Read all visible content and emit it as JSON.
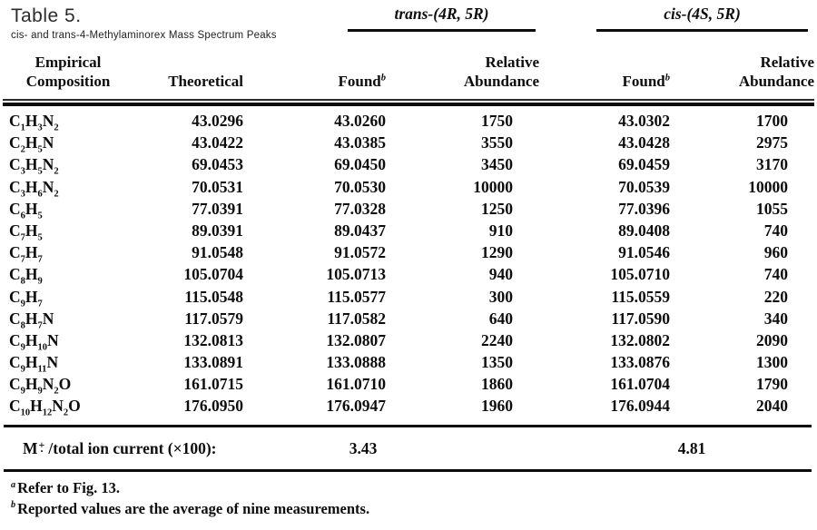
{
  "caption": {
    "title": "Table 5.",
    "subtitle": "cis- and trans-4-Methylaminorex Mass Spectrum Peaks"
  },
  "groups": {
    "trans": {
      "label": "trans-(4R, 5R)"
    },
    "cis": {
      "label": "cis-(4S, 5R)"
    }
  },
  "columns": {
    "empirical_line1": "Empirical",
    "empirical_line2": "Composition",
    "theoretical": "Theoretical",
    "found": "Found",
    "found_sup": "b",
    "relative_line1": "Relative",
    "relative_line2": "Abundance"
  },
  "table": {
    "rows": [
      {
        "formula": "C1H3N2",
        "theoretical": "43.0296",
        "trans_found": "43.0260",
        "trans_ra": "1750",
        "cis_found": "43.0302",
        "cis_ra": "1700"
      },
      {
        "formula": "C2H5N",
        "theoretical": "43.0422",
        "trans_found": "43.0385",
        "trans_ra": "3550",
        "cis_found": "43.0428",
        "cis_ra": "2975"
      },
      {
        "formula": "C3H5N2",
        "theoretical": "69.0453",
        "trans_found": "69.0450",
        "trans_ra": "3450",
        "cis_found": "69.0459",
        "cis_ra": "3170"
      },
      {
        "formula": "C3H6N2",
        "theoretical": "70.0531",
        "trans_found": "70.0530",
        "trans_ra": "10000",
        "cis_found": "70.0539",
        "cis_ra": "10000"
      },
      {
        "formula": "C6H5",
        "theoretical": "77.0391",
        "trans_found": "77.0328",
        "trans_ra": "1250",
        "cis_found": "77.0396",
        "cis_ra": "1055"
      },
      {
        "formula": "C7H5",
        "theoretical": "89.0391",
        "trans_found": "89.0437",
        "trans_ra": "910",
        "cis_found": "89.0408",
        "cis_ra": "740"
      },
      {
        "formula": "C7H7",
        "theoretical": "91.0548",
        "trans_found": "91.0572",
        "trans_ra": "1290",
        "cis_found": "91.0546",
        "cis_ra": "960"
      },
      {
        "formula": "C8H9",
        "theoretical": "105.0704",
        "trans_found": "105.0713",
        "trans_ra": "940",
        "cis_found": "105.0710",
        "cis_ra": "740"
      },
      {
        "formula": "C9H7",
        "theoretical": "115.0548",
        "trans_found": "115.0577",
        "trans_ra": "300",
        "cis_found": "115.0559",
        "cis_ra": "220"
      },
      {
        "formula": "C8H7N",
        "theoretical": "117.0579",
        "trans_found": "117.0582",
        "trans_ra": "640",
        "cis_found": "117.0590",
        "cis_ra": "340"
      },
      {
        "formula": "C9H10N",
        "theoretical": "132.0813",
        "trans_found": "132.0807",
        "trans_ra": "2240",
        "cis_found": "132.0802",
        "cis_ra": "2090"
      },
      {
        "formula": "C9H11N",
        "theoretical": "133.0891",
        "trans_found": "133.0888",
        "trans_ra": "1350",
        "cis_found": "133.0876",
        "cis_ra": "1300"
      },
      {
        "formula": "C9H9N2O",
        "theoretical": "161.0715",
        "trans_found": "161.0710",
        "trans_ra": "1860",
        "cis_found": "161.0704",
        "cis_ra": "1790"
      },
      {
        "formula": "C10H12N2O",
        "theoretical": "176.0950",
        "trans_found": "176.0947",
        "trans_ra": "1960",
        "cis_found": "176.0944",
        "cis_ra": "2040"
      }
    ]
  },
  "summary": {
    "label_m": "M",
    "label_sup": "+",
    "label_dot": "·",
    "label_rest": "/total ion current (×100):",
    "trans_value": "3.43",
    "cis_value": "4.81"
  },
  "footnotes": [
    {
      "marker": "a",
      "text": "Refer to Fig. 13."
    },
    {
      "marker": "b",
      "text": "Reported values are the average of nine measurements."
    }
  ],
  "colors": {
    "background": "#ffffff",
    "ink": "#0d0d0d"
  }
}
